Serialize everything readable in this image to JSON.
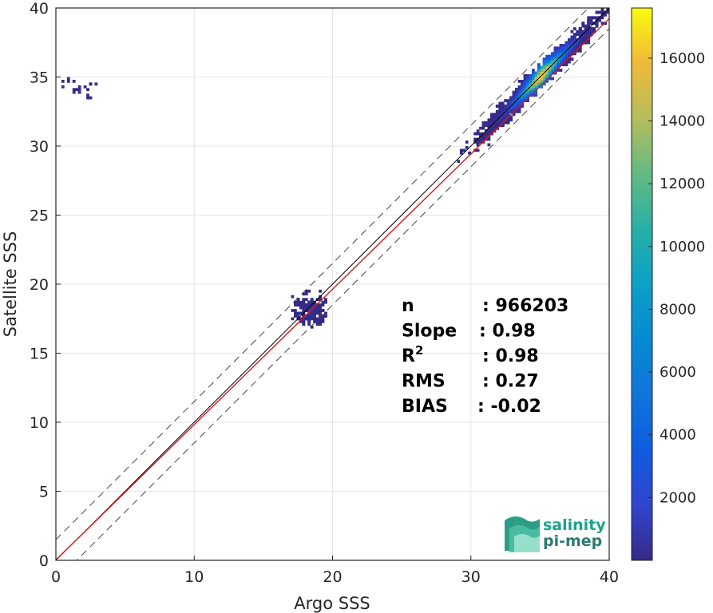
{
  "colors": {
    "identity_line": "#000000",
    "fit_line": "#d7191c",
    "dashed_line": "#444444",
    "grid": "#e6e6e6",
    "logo_primary": "#1aa38c",
    "logo_secondary": "#2b7a6e"
  },
  "chart_data": {
    "type": "heatmap",
    "xlabel": "Argo SSS",
    "ylabel": "Satellite SSS",
    "xlim": [
      0,
      40
    ],
    "ylim": [
      0,
      40
    ],
    "xticks": [
      "0",
      "10",
      "20",
      "30",
      "40"
    ],
    "yticks": [
      "0",
      "5",
      "10",
      "15",
      "20",
      "25",
      "30",
      "35",
      "40"
    ],
    "grid": true,
    "colormap": "parula",
    "colorbar": {
      "range": [
        0,
        17600
      ],
      "ticks": [
        "2000",
        "4000",
        "6000",
        "8000",
        "10000",
        "12000",
        "14000",
        "16000"
      ],
      "tick_values": [
        2000,
        4000,
        6000,
        8000,
        10000,
        12000,
        14000,
        16000
      ]
    },
    "lines": {
      "identity": {
        "slope": 1,
        "intercept": 0
      },
      "fit": {
        "slope": 0.98,
        "intercept": 0.03
      },
      "upper_band": {
        "slope": 1,
        "intercept": 1.5
      },
      "lower_band": {
        "slope": 1,
        "intercept": -1.5
      }
    },
    "density_clusters": [
      {
        "x_center": 35.0,
        "y_center": 35.0,
        "x_spread": 2.2,
        "y_spread_across": 0.9,
        "x_range": [
          28.5,
          40
        ],
        "count": 1600,
        "peak_density": 17000
      },
      {
        "x_center": 18.3,
        "y_center": 18.0,
        "x_spread": 0.6,
        "y_spread_across": 0.5,
        "x_range": [
          16.6,
          19.5
        ],
        "count": 220,
        "peak_density": 800
      },
      {
        "x_center": 1.6,
        "y_center": 34.0,
        "x_spread": 0.7,
        "y_spread_across": 0.3,
        "x_range": [
          0.4,
          3.2
        ],
        "count": 20,
        "peak_density": 50
      }
    ],
    "stats": [
      {
        "label": "n",
        "sep": ": 966203",
        "sup": ""
      },
      {
        "label": "Slope",
        "sep": ": 0.98",
        "sup": ""
      },
      {
        "label": "R",
        "sep": ": 0.98",
        "sup": "2"
      },
      {
        "label": "RMS",
        "sep": ": 0.27",
        "sup": ""
      },
      {
        "label": "BIAS",
        "sep": ": -0.02",
        "sup": ""
      }
    ]
  },
  "logo": {
    "line1": "salinity",
    "line2": "pi-mep"
  }
}
